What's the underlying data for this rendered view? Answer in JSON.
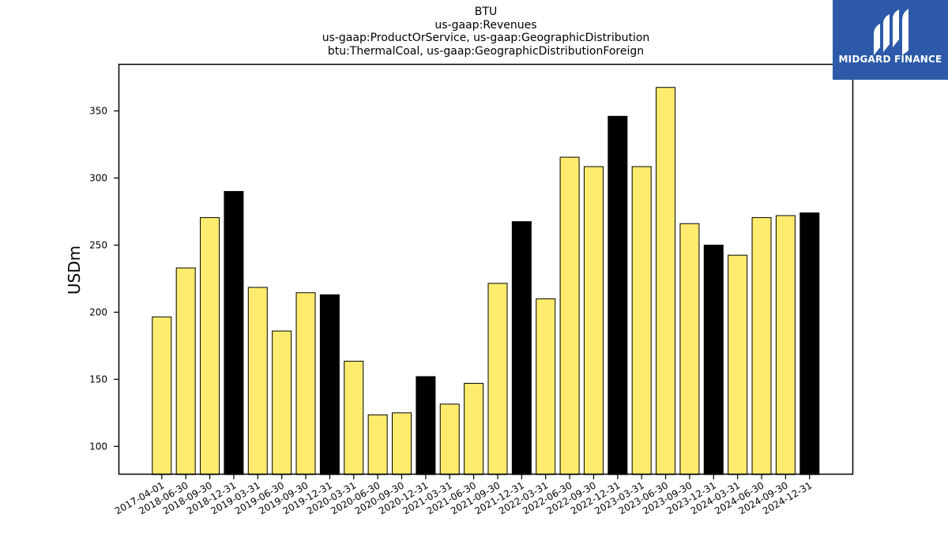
{
  "chart_data": {
    "type": "bar",
    "title_lines": [
      "BTU",
      "us-gaap:Revenues",
      "us-gaap:ProductOrService, us-gaap:GeographicDistribution",
      "btu:ThermalCoal, us-gaap:GeographicDistributionForeign"
    ],
    "xlabel": "",
    "ylabel": "USDm",
    "ylim": [
      79,
      385
    ],
    "yticks": [
      100,
      150,
      200,
      250,
      300,
      350
    ],
    "grid": false,
    "categories": [
      "2017-04-01",
      "2018-06-30",
      "2018-09-30",
      "2018-12-31",
      "2019-03-31",
      "2019-06-30",
      "2019-09-30",
      "2019-12-31",
      "2020-03-31",
      "2020-06-30",
      "2020-09-30",
      "2020-12-31",
      "2021-03-31",
      "2021-06-30",
      "2021-09-30",
      "2021-12-31",
      "2022-03-31",
      "2022-06-30",
      "2022-09-30",
      "2022-12-31",
      "2023-03-31",
      "2023-06-30",
      "2023-09-30",
      "2023-12-31",
      "2024-03-31",
      "2024-06-30",
      "2024-09-30",
      "2024-12-31"
    ],
    "values": [
      196.5,
      233,
      270.5,
      290,
      218.5,
      186,
      214.5,
      213,
      163.5,
      123.5,
      125,
      152,
      131.5,
      147,
      221.5,
      267.5,
      210,
      315.5,
      308.5,
      346,
      308.5,
      367.5,
      266,
      250,
      242.5,
      270.5,
      272,
      274
    ],
    "bar_colors": [
      "#ffec6e",
      "#ffec6e",
      "#ffec6e",
      "#000000",
      "#ffec6e",
      "#ffec6e",
      "#ffec6e",
      "#000000",
      "#ffec6e",
      "#ffec6e",
      "#ffec6e",
      "#000000",
      "#ffec6e",
      "#ffec6e",
      "#ffec6e",
      "#000000",
      "#ffec6e",
      "#ffec6e",
      "#ffec6e",
      "#000000",
      "#ffec6e",
      "#ffec6e",
      "#ffec6e",
      "#000000",
      "#ffec6e",
      "#ffec6e",
      "#ffec6e",
      "#000000"
    ]
  },
  "logo": {
    "text": "MIDGARD FINANCE",
    "background": "#2d5aa8"
  }
}
